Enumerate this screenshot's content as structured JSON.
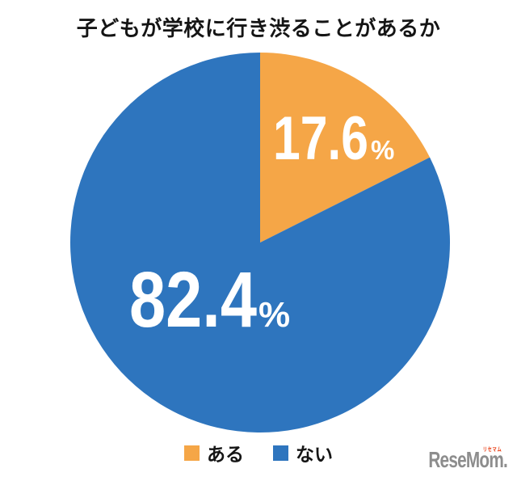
{
  "chart_data": {
    "type": "pie",
    "title": "子どもが学校に行き渋ることがあるか",
    "start_angle_deg": 0,
    "direction": "clockwise",
    "legend_position": "bottom",
    "percent_sign": "%",
    "slices": [
      {
        "label": "ある",
        "value": 17.6,
        "value_label": "17.6",
        "color": "#F5A647"
      },
      {
        "label": "ない",
        "value": 82.4,
        "value_label": "82.4",
        "color": "#2E75BE"
      }
    ]
  },
  "logo": {
    "text": "ReseMom",
    "suffix": ".",
    "ruby": "リセマム",
    "color": "#8d8d8d",
    "ruby_color": "#e8380d"
  }
}
